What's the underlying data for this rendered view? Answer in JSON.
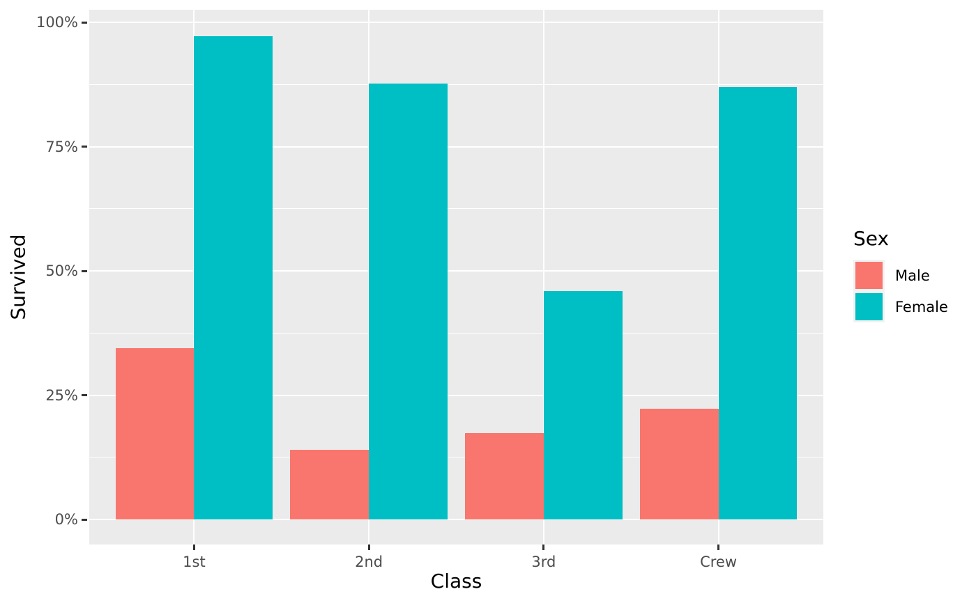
{
  "figure": {
    "background": "#FFFFFF",
    "panel_background": "#EBEBEB",
    "gridline_color": "#FFFFFF",
    "tick_mark_color": "#333333",
    "tick_label_color": "#4D4D4D",
    "title_color": "#000000"
  },
  "chart_data": {
    "type": "bar",
    "orientation": "vertical",
    "grouping": "dodge",
    "title": "",
    "xlabel": "Class",
    "ylabel": "Survived",
    "categories": [
      "1st",
      "2nd",
      "3rd",
      "Crew"
    ],
    "series": [
      {
        "name": "Male",
        "color": "#F8766D",
        "values": [
          34.4,
          14.0,
          17.3,
          22.3
        ]
      },
      {
        "name": "Female",
        "color": "#00BFC4",
        "values": [
          97.2,
          87.7,
          45.9,
          87.0
        ]
      }
    ],
    "values_unit": "percent_survived",
    "ylim": [
      0,
      100
    ],
    "y_major_ticks": [
      0,
      25,
      50,
      75,
      100
    ],
    "y_tick_labels": [
      "0%",
      "25%",
      "50%",
      "75%",
      "100%"
    ],
    "y_minor_ticks": [
      12.5,
      37.5,
      62.5,
      87.5
    ],
    "grid": "horizontal major+minor, vertical major at category centers",
    "legend": {
      "title": "Sex",
      "position": "right",
      "entries": [
        "Male",
        "Female"
      ]
    }
  }
}
